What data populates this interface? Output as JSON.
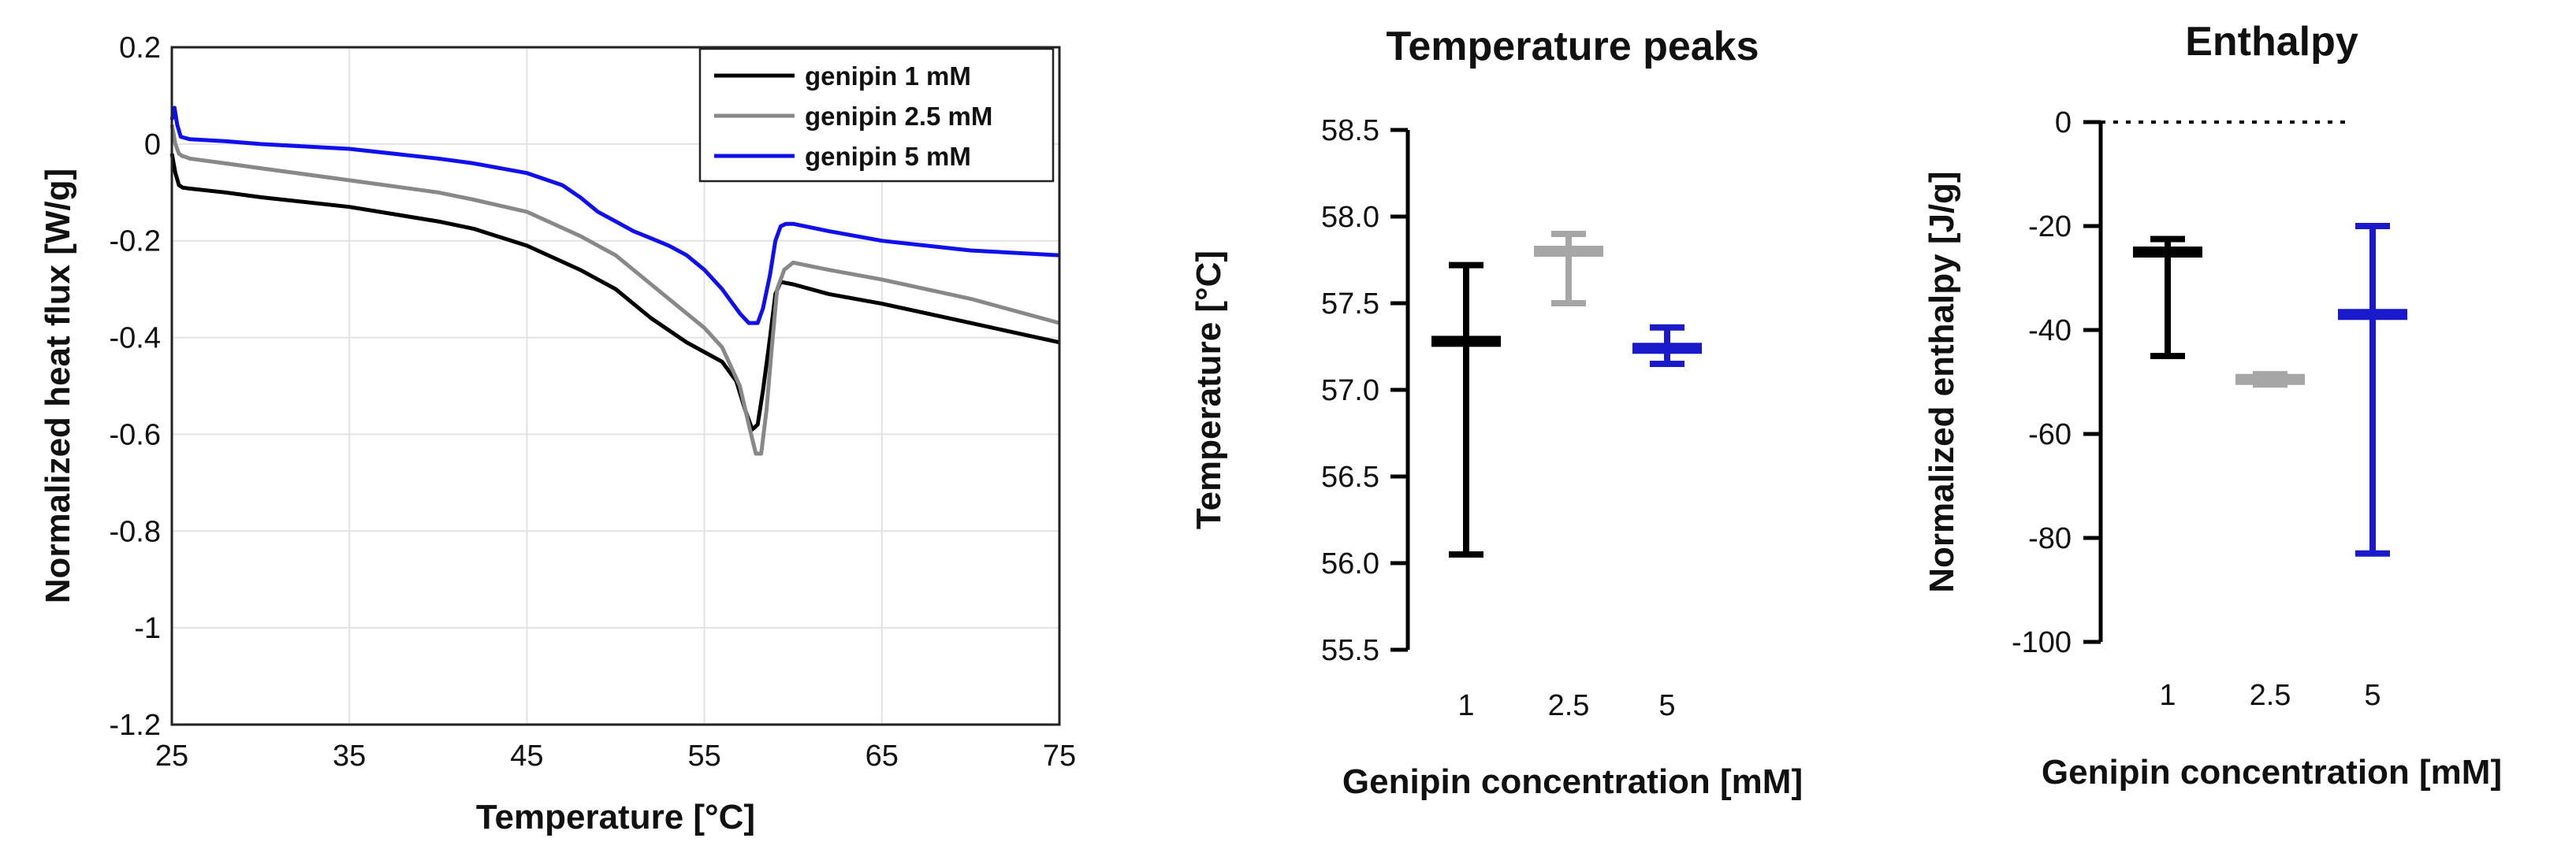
{
  "chart_data": [
    {
      "type": "line",
      "title": "",
      "xlabel": "Temperature [°C]",
      "ylabel": "Normalized heat flux [W/g]",
      "xlim": [
        25,
        75
      ],
      "ylim": [
        -1.2,
        0.2
      ],
      "xticks": [
        "25",
        "35",
        "45",
        "55",
        "65",
        "75"
      ],
      "yticks": [
        "0.2",
        "0",
        "-0.2",
        "-0.4",
        "-0.6",
        "-0.8",
        "-1",
        "-1.2"
      ],
      "grid": true,
      "legend_position": "top-right",
      "series": [
        {
          "name": "genipin 1 mM",
          "color": "#000000",
          "x": [
            25,
            25.2,
            25.4,
            25.6,
            25.8,
            26,
            28,
            30,
            35,
            40,
            42,
            45,
            48,
            50,
            52,
            54,
            55,
            56,
            56.8,
            57.3,
            57.7,
            58,
            58.3,
            58.7,
            59,
            59.3,
            60,
            62,
            65,
            70,
            75
          ],
          "y": [
            -0.02,
            -0.06,
            -0.085,
            -0.09,
            -0.091,
            -0.092,
            -0.1,
            -0.11,
            -0.13,
            -0.16,
            -0.175,
            -0.21,
            -0.26,
            -0.3,
            -0.36,
            -0.41,
            -0.43,
            -0.45,
            -0.49,
            -0.55,
            -0.59,
            -0.58,
            -0.51,
            -0.4,
            -0.31,
            -0.285,
            -0.29,
            -0.31,
            -0.33,
            -0.37,
            -0.41
          ]
        },
        {
          "name": "genipin 2.5 mM",
          "color": "#888888",
          "x": [
            25,
            25.2,
            25.4,
            25.6,
            25.8,
            26,
            28,
            30,
            35,
            40,
            42,
            45,
            48,
            50,
            52,
            54,
            55,
            56,
            57,
            57.5,
            57.9,
            58.2,
            58.5,
            58.8,
            59.1,
            59.5,
            60,
            62,
            65,
            70,
            75
          ],
          "y": [
            0.04,
            0.0,
            -0.02,
            -0.025,
            -0.027,
            -0.03,
            -0.04,
            -0.05,
            -0.075,
            -0.1,
            -0.115,
            -0.14,
            -0.19,
            -0.23,
            -0.29,
            -0.35,
            -0.38,
            -0.42,
            -0.5,
            -0.58,
            -0.64,
            -0.64,
            -0.55,
            -0.42,
            -0.3,
            -0.26,
            -0.245,
            -0.26,
            -0.28,
            -0.32,
            -0.37
          ]
        },
        {
          "name": "genipin 5 mM",
          "color": "#1010ee",
          "x": [
            25,
            25.15,
            25.3,
            25.5,
            25.8,
            26,
            28,
            30,
            35,
            40,
            42,
            45,
            47,
            48,
            49,
            50,
            51,
            52,
            53,
            54,
            55,
            56,
            57,
            57.5,
            58,
            58.3,
            58.7,
            59,
            59.3,
            59.6,
            60,
            62,
            65,
            70,
            75
          ],
          "y": [
            0.05,
            0.075,
            0.04,
            0.015,
            0.012,
            0.01,
            0.006,
            0.0,
            -0.01,
            -0.03,
            -0.04,
            -0.06,
            -0.085,
            -0.11,
            -0.14,
            -0.16,
            -0.18,
            -0.195,
            -0.21,
            -0.23,
            -0.26,
            -0.3,
            -0.35,
            -0.37,
            -0.37,
            -0.34,
            -0.27,
            -0.2,
            -0.17,
            -0.165,
            -0.165,
            -0.18,
            -0.2,
            -0.22,
            -0.23
          ]
        }
      ]
    },
    {
      "type": "scatter",
      "title": "Temperature peaks",
      "xlabel": "Genipin concentration [mM]",
      "ylabel": "Temperature [°C]",
      "categories": [
        "1",
        "2.5",
        "5"
      ],
      "ylim": [
        55.5,
        58.5
      ],
      "yticks": [
        "58.5",
        "58.0",
        "57.5",
        "57.0",
        "56.5",
        "56.0",
        "55.5"
      ],
      "grid": false,
      "series": [
        {
          "name": "1",
          "color": "#000000",
          "mean": 57.28,
          "min": 56.05,
          "max": 57.72
        },
        {
          "name": "2.5",
          "color": "#a6a6a6",
          "mean": 57.8,
          "min": 57.5,
          "max": 57.9
        },
        {
          "name": "5",
          "color": "#1a1acc",
          "mean": 57.24,
          "min": 57.15,
          "max": 57.36
        }
      ]
    },
    {
      "type": "scatter",
      "title": "Enthalpy",
      "xlabel": "Genipin concentration [mM]",
      "ylabel": "Normalized enthalpy [J/g]",
      "categories": [
        "1",
        "2.5",
        "5"
      ],
      "ylim": [
        -100,
        0
      ],
      "yticks": [
        "0",
        "-20",
        "-40",
        "-60",
        "-80",
        "-100"
      ],
      "grid": false,
      "reference_line": 0,
      "series": [
        {
          "name": "1",
          "color": "#000000",
          "mean": -25,
          "min": -45,
          "max": -22.5
        },
        {
          "name": "2.5",
          "color": "#a6a6a6",
          "mean": -49.5,
          "min": -50.5,
          "max": -48.5
        },
        {
          "name": "5",
          "color": "#1a1acc",
          "mean": -37,
          "min": -83,
          "max": -20
        }
      ]
    }
  ]
}
